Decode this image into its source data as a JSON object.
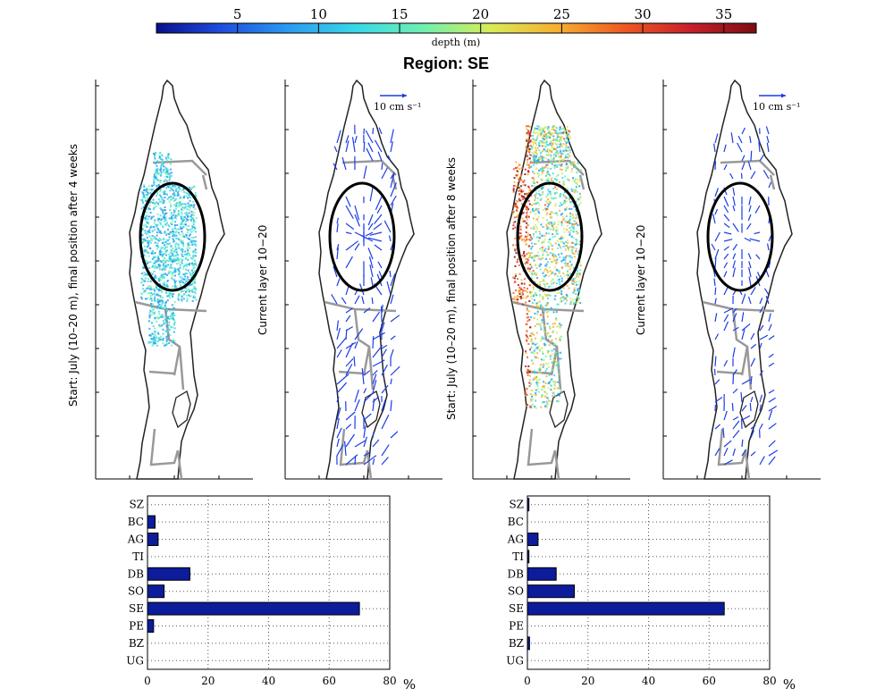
{
  "colorbar": {
    "label": "depth (m)",
    "ticks": [
      "5",
      "10",
      "15",
      "20",
      "25",
      "30",
      "35"
    ],
    "tick_values": [
      5,
      10,
      15,
      20,
      25,
      30,
      35
    ],
    "range": [
      0,
      37
    ],
    "colors": [
      "#08108c",
      "#1f4fe0",
      "#2a9cf0",
      "#38d8e8",
      "#6ef0b0",
      "#d8ec58",
      "#f6b030",
      "#ee5a22",
      "#c8202a",
      "#7c0c12"
    ]
  },
  "title": "Region: SE",
  "panels": {
    "p1_label": "Start: July (10–20 m), final position after 4 weeks",
    "p2_label": "Current layer 10−20",
    "p3_label": "Start: July (10–20 m), final position after 8 weeks",
    "p4_label": "Current layer 10−20",
    "scale_label": "10 cm s⁻¹"
  },
  "chart_data": [
    {
      "type": "bar",
      "orientation": "horizontal",
      "categories": [
        "SZ",
        "BC",
        "AG",
        "TI",
        "DB",
        "SO",
        "SE",
        "PE",
        "BZ",
        "UG"
      ],
      "values": [
        0,
        2.5,
        3.5,
        0,
        14,
        5.5,
        70,
        2,
        0,
        0
      ],
      "xlim": [
        0,
        80
      ],
      "xticks": [
        "0",
        "20",
        "40",
        "60",
        "80"
      ],
      "xlabel": "%",
      "grid": true
    },
    {
      "type": "bar",
      "orientation": "horizontal",
      "categories": [
        "SZ",
        "BC",
        "AG",
        "TI",
        "DB",
        "SO",
        "SE",
        "PE",
        "BZ",
        "UG"
      ],
      "values": [
        0.5,
        0,
        3.5,
        0.5,
        9.5,
        15.5,
        65,
        0,
        0.7,
        0
      ],
      "xlim": [
        0,
        80
      ],
      "xticks": [
        "0",
        "20",
        "40",
        "60",
        "80"
      ],
      "xlabel": "%",
      "grid": true
    }
  ],
  "bar_color": "#0c1c9a"
}
